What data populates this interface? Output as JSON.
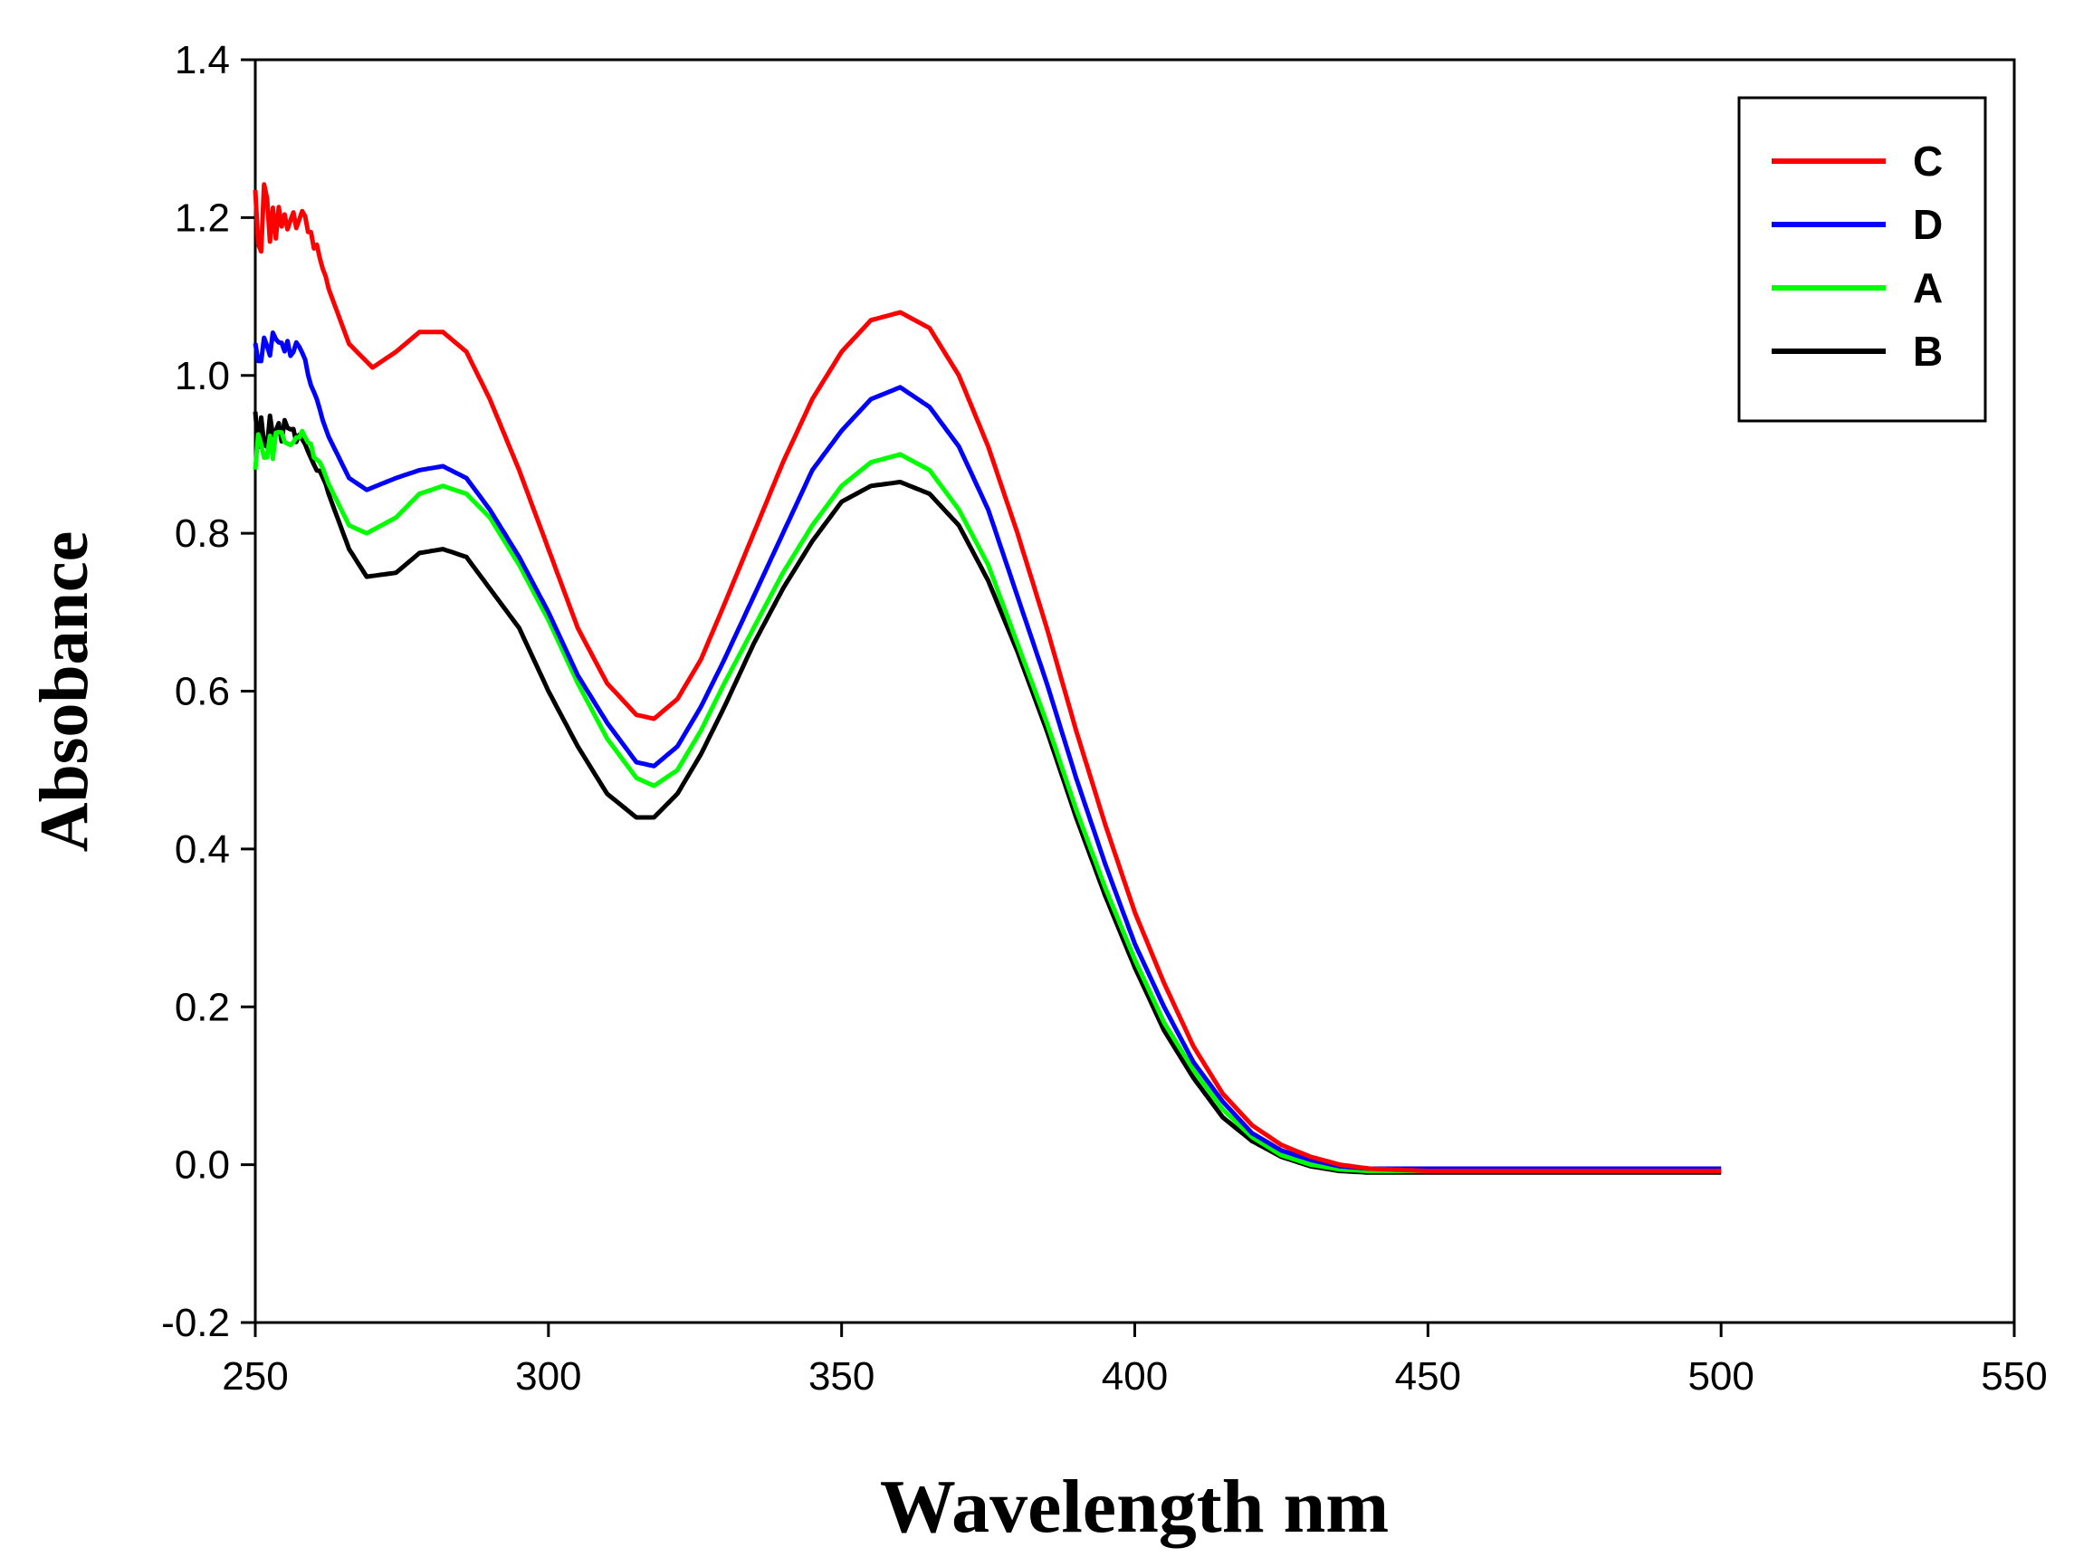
{
  "chart_data": {
    "type": "line",
    "title": "",
    "xlabel": "Wavelength nm",
    "ylabel": "Absobance",
    "xlim": [
      250,
      550
    ],
    "ylim": [
      -0.2,
      1.4
    ],
    "xticks": [
      250,
      300,
      350,
      400,
      450,
      500,
      550
    ],
    "yticks": [
      -0.2,
      0.0,
      0.2,
      0.4,
      0.6,
      0.8,
      1.0,
      1.2,
      1.4
    ],
    "ytick_labels": [
      "-0.2",
      "0.0",
      "0.2",
      "0.4",
      "0.6",
      "0.8",
      "1.0",
      "1.2",
      "1.4"
    ],
    "xtick_labels": [
      "250",
      "300",
      "350",
      "400",
      "450",
      "500",
      "550"
    ],
    "grid": false,
    "legend_position": "top-right",
    "series": [
      {
        "name": "C",
        "color": "#ff0000",
        "noise": 0.05,
        "noise_until": 262,
        "points": [
          [
            250,
            1.2
          ],
          [
            255,
            1.2
          ],
          [
            258,
            1.21
          ],
          [
            262,
            1.12
          ],
          [
            266,
            1.04
          ],
          [
            270,
            1.01
          ],
          [
            274,
            1.03
          ],
          [
            278,
            1.055
          ],
          [
            282,
            1.055
          ],
          [
            286,
            1.03
          ],
          [
            290,
            0.97
          ],
          [
            295,
            0.88
          ],
          [
            300,
            0.78
          ],
          [
            305,
            0.68
          ],
          [
            310,
            0.61
          ],
          [
            315,
            0.57
          ],
          [
            318,
            0.565
          ],
          [
            322,
            0.59
          ],
          [
            326,
            0.64
          ],
          [
            330,
            0.71
          ],
          [
            335,
            0.8
          ],
          [
            340,
            0.89
          ],
          [
            345,
            0.97
          ],
          [
            350,
            1.03
          ],
          [
            355,
            1.07
          ],
          [
            360,
            1.08
          ],
          [
            365,
            1.06
          ],
          [
            370,
            1.0
          ],
          [
            375,
            0.91
          ],
          [
            380,
            0.8
          ],
          [
            385,
            0.68
          ],
          [
            390,
            0.55
          ],
          [
            395,
            0.43
          ],
          [
            400,
            0.32
          ],
          [
            405,
            0.23
          ],
          [
            410,
            0.15
          ],
          [
            415,
            0.09
          ],
          [
            420,
            0.05
          ],
          [
            425,
            0.025
          ],
          [
            430,
            0.01
          ],
          [
            435,
            0.0
          ],
          [
            440,
            -0.005
          ],
          [
            450,
            -0.008
          ],
          [
            500,
            -0.008
          ]
        ]
      },
      {
        "name": "D",
        "color": "#0000ff",
        "noise": 0.025,
        "noise_until": 262,
        "points": [
          [
            250,
            1.03
          ],
          [
            255,
            1.04
          ],
          [
            258,
            1.03
          ],
          [
            262,
            0.93
          ],
          [
            266,
            0.87
          ],
          [
            269,
            0.855
          ],
          [
            274,
            0.87
          ],
          [
            278,
            0.88
          ],
          [
            282,
            0.885
          ],
          [
            286,
            0.87
          ],
          [
            290,
            0.83
          ],
          [
            295,
            0.77
          ],
          [
            300,
            0.7
          ],
          [
            305,
            0.62
          ],
          [
            310,
            0.56
          ],
          [
            315,
            0.51
          ],
          [
            318,
            0.505
          ],
          [
            322,
            0.53
          ],
          [
            326,
            0.58
          ],
          [
            330,
            0.64
          ],
          [
            335,
            0.72
          ],
          [
            340,
            0.8
          ],
          [
            345,
            0.88
          ],
          [
            350,
            0.93
          ],
          [
            355,
            0.97
          ],
          [
            360,
            0.985
          ],
          [
            365,
            0.96
          ],
          [
            370,
            0.91
          ],
          [
            375,
            0.83
          ],
          [
            380,
            0.72
          ],
          [
            385,
            0.61
          ],
          [
            390,
            0.49
          ],
          [
            395,
            0.38
          ],
          [
            400,
            0.28
          ],
          [
            405,
            0.2
          ],
          [
            410,
            0.13
          ],
          [
            415,
            0.08
          ],
          [
            420,
            0.04
          ],
          [
            425,
            0.018
          ],
          [
            430,
            0.006
          ],
          [
            435,
            -0.002
          ],
          [
            440,
            -0.005
          ],
          [
            450,
            -0.005
          ],
          [
            500,
            -0.005
          ]
        ]
      },
      {
        "name": "A",
        "color": "#00ff00",
        "noise": 0.025,
        "noise_until": 262,
        "points": [
          [
            250,
            0.9
          ],
          [
            255,
            0.92
          ],
          [
            258,
            0.93
          ],
          [
            262,
            0.87
          ],
          [
            266,
            0.81
          ],
          [
            269,
            0.8
          ],
          [
            274,
            0.82
          ],
          [
            278,
            0.85
          ],
          [
            282,
            0.86
          ],
          [
            286,
            0.85
          ],
          [
            290,
            0.82
          ],
          [
            295,
            0.76
          ],
          [
            300,
            0.69
          ],
          [
            305,
            0.61
          ],
          [
            310,
            0.54
          ],
          [
            315,
            0.49
          ],
          [
            318,
            0.48
          ],
          [
            322,
            0.5
          ],
          [
            326,
            0.55
          ],
          [
            330,
            0.61
          ],
          [
            335,
            0.68
          ],
          [
            340,
            0.75
          ],
          [
            345,
            0.81
          ],
          [
            350,
            0.86
          ],
          [
            355,
            0.89
          ],
          [
            360,
            0.9
          ],
          [
            365,
            0.88
          ],
          [
            370,
            0.83
          ],
          [
            375,
            0.76
          ],
          [
            380,
            0.66
          ],
          [
            385,
            0.56
          ],
          [
            390,
            0.45
          ],
          [
            395,
            0.35
          ],
          [
            400,
            0.26
          ],
          [
            405,
            0.18
          ],
          [
            410,
            0.12
          ],
          [
            415,
            0.07
          ],
          [
            420,
            0.035
          ],
          [
            425,
            0.012
          ],
          [
            430,
            0.0
          ],
          [
            435,
            -0.006
          ],
          [
            440,
            -0.008
          ],
          [
            450,
            -0.008
          ]
        ]
      },
      {
        "name": "B",
        "color": "#000000",
        "noise": 0.025,
        "noise_until": 262,
        "points": [
          [
            250,
            0.93
          ],
          [
            255,
            0.93
          ],
          [
            258,
            0.92
          ],
          [
            262,
            0.86
          ],
          [
            266,
            0.78
          ],
          [
            269,
            0.745
          ],
          [
            274,
            0.75
          ],
          [
            278,
            0.775
          ],
          [
            282,
            0.78
          ],
          [
            286,
            0.77
          ],
          [
            290,
            0.73
          ],
          [
            295,
            0.68
          ],
          [
            300,
            0.6
          ],
          [
            305,
            0.53
          ],
          [
            310,
            0.47
          ],
          [
            315,
            0.44
          ],
          [
            318,
            0.44
          ],
          [
            322,
            0.47
          ],
          [
            326,
            0.52
          ],
          [
            330,
            0.58
          ],
          [
            335,
            0.66
          ],
          [
            340,
            0.73
          ],
          [
            345,
            0.79
          ],
          [
            350,
            0.84
          ],
          [
            355,
            0.86
          ],
          [
            360,
            0.865
          ],
          [
            365,
            0.85
          ],
          [
            370,
            0.81
          ],
          [
            375,
            0.74
          ],
          [
            380,
            0.65
          ],
          [
            385,
            0.55
          ],
          [
            390,
            0.44
          ],
          [
            395,
            0.34
          ],
          [
            400,
            0.25
          ],
          [
            405,
            0.17
          ],
          [
            410,
            0.11
          ],
          [
            415,
            0.06
          ],
          [
            420,
            0.03
          ],
          [
            425,
            0.01
          ],
          [
            430,
            -0.002
          ],
          [
            435,
            -0.008
          ],
          [
            440,
            -0.01
          ],
          [
            450,
            -0.01
          ],
          [
            500,
            -0.01
          ]
        ]
      }
    ]
  }
}
